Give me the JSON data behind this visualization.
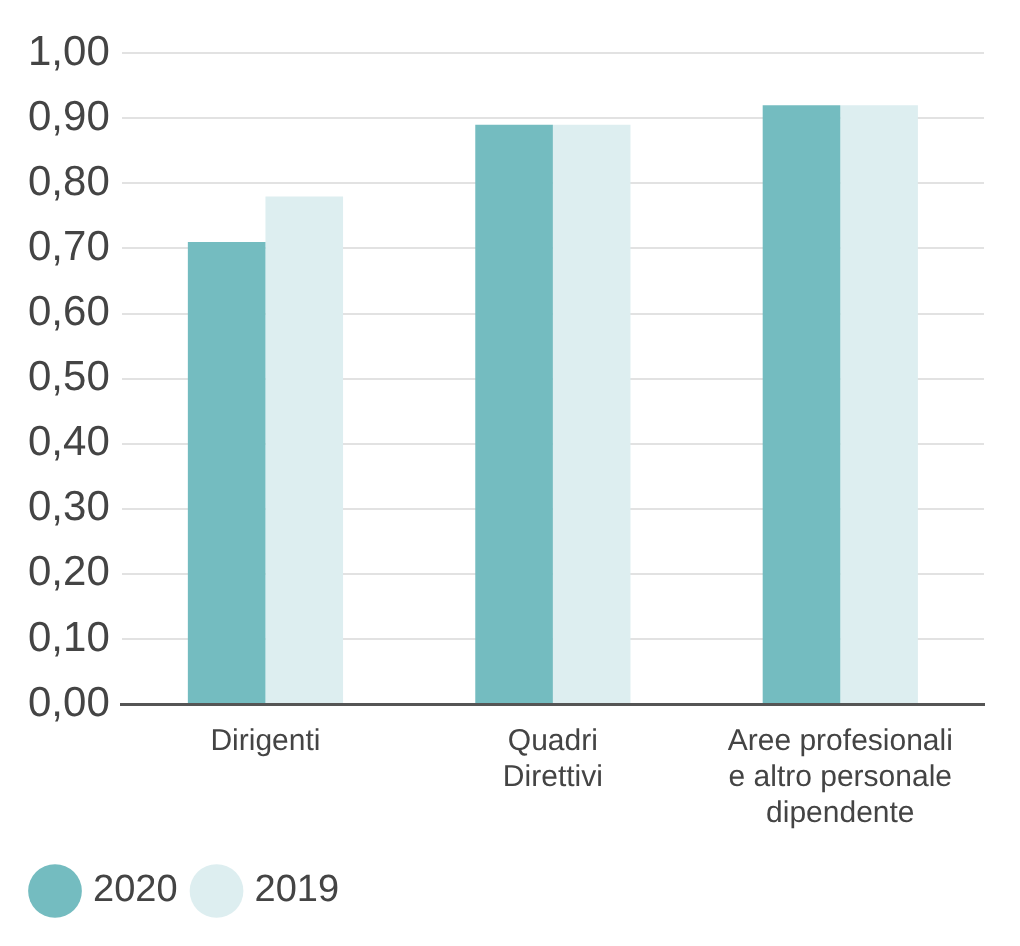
{
  "chart_data": {
    "type": "bar",
    "categories": [
      "Dirigenti",
      "Quadri\nDirettivi",
      "Aree profesionali\ne altro personale\ndipendente"
    ],
    "series": [
      {
        "name": "2020",
        "color": "#74bcc0",
        "values": [
          0.71,
          0.89,
          0.92
        ]
      },
      {
        "name": "2019",
        "color": "#ddeef0",
        "values": [
          0.78,
          0.89,
          0.92
        ]
      }
    ],
    "ylim": [
      0,
      1
    ],
    "yticks": [
      {
        "value": 0,
        "label": "0,00"
      },
      {
        "value": 0.1,
        "label": "0,10"
      },
      {
        "value": 0.2,
        "label": "0,20"
      },
      {
        "value": 0.3,
        "label": "0,30"
      },
      {
        "value": 0.4,
        "label": "0,40"
      },
      {
        "value": 0.5,
        "label": "0,50"
      },
      {
        "value": 0.6,
        "label": "0,60"
      },
      {
        "value": 0.7,
        "label": "0,70"
      },
      {
        "value": 0.8,
        "label": "0,80"
      },
      {
        "value": 0.9,
        "label": "0,90"
      },
      {
        "value": 1,
        "label": "1,00"
      }
    ],
    "grid": "y",
    "legend": "bottom left"
  }
}
